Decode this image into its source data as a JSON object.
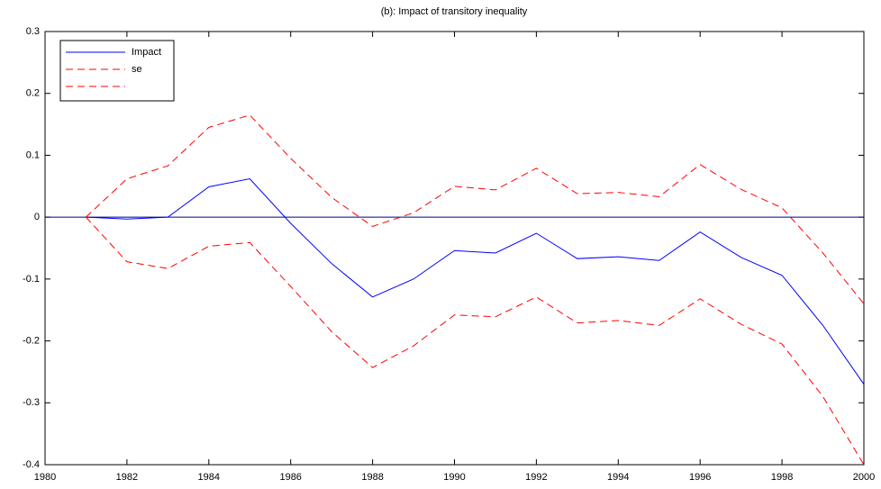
{
  "chart_data": {
    "type": "line",
    "title": "(b): Impact of transitory inequality",
    "x": [
      1981,
      1982,
      1983,
      1984,
      1985,
      1986,
      1987,
      1988,
      1989,
      1990,
      1991,
      1992,
      1993,
      1994,
      1995,
      1996,
      1997,
      1998,
      1999,
      2000
    ],
    "series": [
      {
        "name": "Impact",
        "color": "#0000ff",
        "dashed": false,
        "values": [
          0,
          -0.003,
          0,
          0.049,
          0.062,
          -0.01,
          -0.075,
          -0.129,
          -0.1,
          -0.054,
          -0.058,
          -0.026,
          -0.067,
          -0.064,
          -0.07,
          -0.024,
          -0.065,
          -0.094,
          -0.175,
          -0.27
        ]
      },
      {
        "name": "se",
        "color": "#ff0000",
        "dashed": true,
        "values": [
          0,
          0.062,
          0.083,
          0.145,
          0.165,
          0.095,
          0.032,
          -0.015,
          0.007,
          0.05,
          0.044,
          0.079,
          0.038,
          0.04,
          0.033,
          0.085,
          0.045,
          0.015,
          -0.058,
          -0.14
        ]
      },
      {
        "color": "#ff0000",
        "dashed": true,
        "values": [
          0,
          -0.072,
          -0.083,
          -0.047,
          -0.041,
          -0.112,
          -0.185,
          -0.243,
          -0.208,
          -0.158,
          -0.161,
          -0.129,
          -0.171,
          -0.167,
          -0.175,
          -0.132,
          -0.173,
          -0.205,
          -0.29,
          -0.4
        ]
      }
    ],
    "reference_line": {
      "value": 0,
      "color": "#000080"
    },
    "xlim": [
      1980,
      2000
    ],
    "xticks": [
      1980,
      1982,
      1984,
      1986,
      1988,
      1990,
      1992,
      1994,
      1996,
      1998,
      2000
    ],
    "ylim": [
      -0.4,
      0.3
    ],
    "yticks": [
      -0.4,
      -0.3,
      -0.2,
      -0.1,
      0,
      0.1,
      0.2,
      0.3
    ],
    "legend": "upper-left"
  }
}
